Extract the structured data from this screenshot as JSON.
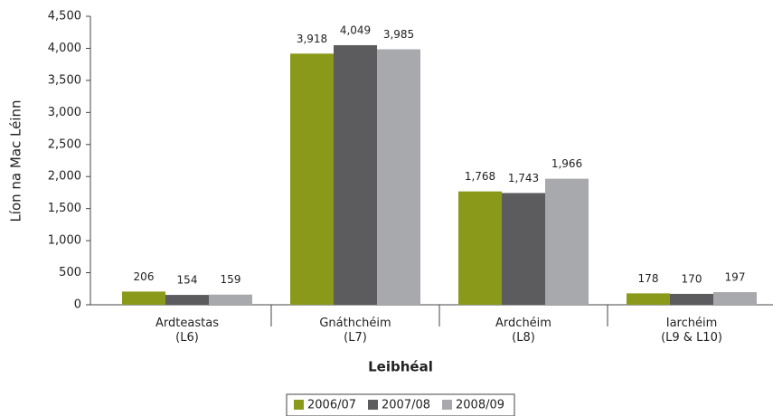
{
  "chart_data": {
    "type": "bar",
    "y_label": "Líon na Mac Léinn",
    "x_label": "Leibhéal",
    "categories": [
      "Ardteastas\n(L6)",
      "Gnáthchéim\n(L7)",
      "Ardchéim\n(L8)",
      "Iarchéim\n(L9 & L10)"
    ],
    "series": [
      {
        "name": "2006/07",
        "color": "#8b991b",
        "values": [
          206,
          3918,
          1768,
          178
        ],
        "value_labels": [
          "206",
          "3,918",
          "1,768",
          "178"
        ]
      },
      {
        "name": "2007/08",
        "color": "#5c5c5e",
        "values": [
          154,
          4049,
          1743,
          170
        ],
        "value_labels": [
          "154",
          "4,049",
          "1,743",
          "170"
        ]
      },
      {
        "name": "2008/09",
        "color": "#a8a9ac",
        "values": [
          159,
          3985,
          1966,
          197
        ],
        "value_labels": [
          "159",
          "3,985",
          "1,966",
          "197"
        ]
      }
    ],
    "ylim": [
      0,
      4500
    ],
    "yticks": [
      0,
      500,
      {
        "value": 1000,
        "label": "1,000"
      },
      {
        "value": 1500,
        "label": "1,500"
      },
      {
        "value": 2000,
        "label": "2,000"
      },
      {
        "value": 2500,
        "label": "2,500"
      },
      {
        "value": 3000,
        "label": "3,000"
      },
      {
        "value": 3500,
        "label": "3,500"
      },
      {
        "value": 4000,
        "label": "4,000"
      },
      {
        "value": 4500,
        "label": "4,500"
      }
    ],
    "legend": "bottom"
  }
}
